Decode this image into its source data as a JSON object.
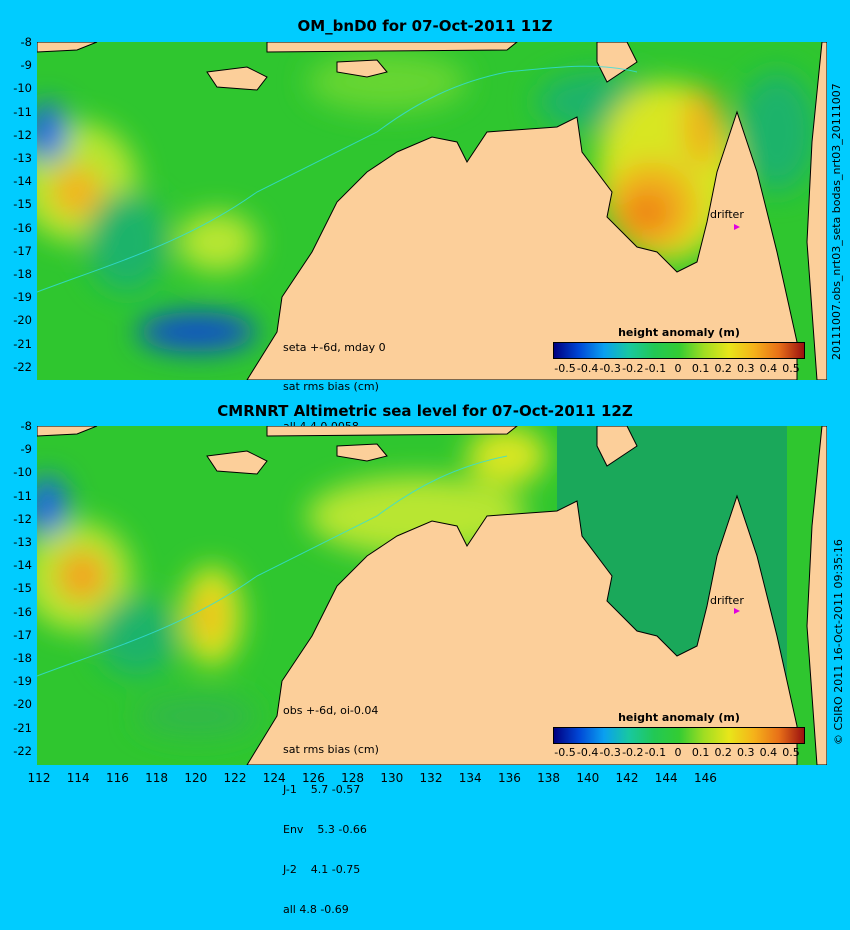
{
  "panels": [
    {
      "title": "OM_bnD0 for 07-Oct-2011 11Z",
      "right_label": "20111007.obs_nrt03_seta   bodas_nrt03_20111007",
      "stats": [
        "seta +-6d, mday 0",
        "sat rms bias (cm)",
        "all 4.4 0.0058"
      ],
      "colorbar_title": "height anomaly (m)",
      "drifter_label": "drifter"
    },
    {
      "title": "CMRNRT Altimetric sea level  for 07-Oct-2011 12Z",
      "right_label": "© CSIRO 2011  16-Oct-2011 09:35:16",
      "stats": [
        "obs +-6d, oi-0.04",
        "sat rms bias (cm)",
        "J-1    5.7 -0.57",
        "Env    5.3 -0.66",
        "J-2    4.1 -0.75",
        "all 4.8 -0.69"
      ],
      "colorbar_title": "height anomaly (m)",
      "drifter_label": "drifter"
    }
  ],
  "y_ticks": [
    "-8",
    "-9",
    "-10",
    "-11",
    "-12",
    "-13",
    "-14",
    "-15",
    "-16",
    "-17",
    "-18",
    "-19",
    "-20",
    "-21",
    "-22"
  ],
  "x_ticks": [
    "112",
    "114",
    "116",
    "118",
    "120",
    "122",
    "124",
    "126",
    "128",
    "130",
    "132",
    "134",
    "136",
    "138",
    "140",
    "142",
    "144",
    "146"
  ],
  "colorbar_ticks": [
    "-0.5",
    "-0.4",
    "-0.3",
    "-0.2",
    "-0.1",
    "0",
    "0.1",
    "0.2",
    "0.3",
    "0.4",
    "0.5"
  ],
  "colors": {
    "background": "#00ccff",
    "land": "#fccf9a",
    "ocean_base": "#33cc33",
    "drifter": "#e000e0"
  }
}
